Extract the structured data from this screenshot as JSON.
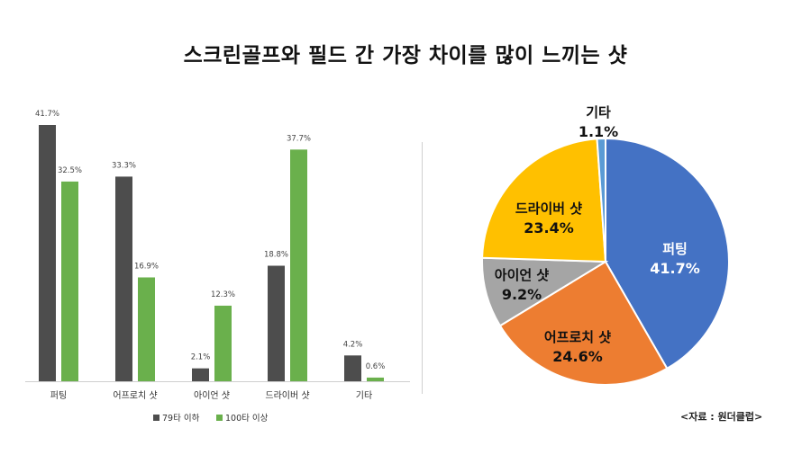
{
  "title": "스크린골프와 필드 간 가장 차이를 많이 느끼는 샷",
  "source": "<자료 : 원더클럽>",
  "colors": {
    "series_79": "#4d4d4d",
    "series_100": "#6ab04c",
    "pie_putting": "#4472c4",
    "pie_approach": "#ed7d31",
    "pie_iron": "#a5a5a5",
    "pie_driver": "#ffc000",
    "pie_etc": "#5b9bd5"
  },
  "chart_data": [
    {
      "type": "bar",
      "title": "",
      "categories": [
        "퍼팅",
        "어프로치 샷",
        "아이언 샷",
        "드라이버 샷",
        "기타"
      ],
      "series": [
        {
          "name": "79타 이하",
          "values": [
            41.7,
            33.3,
            2.1,
            18.8,
            4.2
          ],
          "labels": [
            "41.7%",
            "33.3%",
            "2.1%",
            "18.8%",
            "4.2%"
          ]
        },
        {
          "name": "100타 이상",
          "values": [
            32.5,
            16.9,
            12.3,
            37.7,
            0.6
          ],
          "labels": [
            "32.5%",
            "16.9%",
            "12.3%",
            "37.7%",
            "0.6%"
          ]
        }
      ],
      "ylim": [
        0,
        45
      ],
      "grid": false,
      "legend": "bottom"
    },
    {
      "type": "pie",
      "title": "",
      "slices": [
        {
          "label": "퍼팅",
          "value": 41.7,
          "value_label": "41.7%",
          "color_key": "pie_putting",
          "label_color": "#ffffff"
        },
        {
          "label": "어프로치 샷",
          "value": 24.6,
          "value_label": "24.6%",
          "color_key": "pie_approach",
          "label_color": "#111111"
        },
        {
          "label": "아이언 샷",
          "value": 9.2,
          "value_label": "9.2%",
          "color_key": "pie_iron",
          "label_color": "#111111"
        },
        {
          "label": "드라이버 샷",
          "value": 23.4,
          "value_label": "23.4%",
          "color_key": "pie_driver",
          "label_color": "#111111"
        },
        {
          "label": "기타",
          "value": 1.1,
          "value_label": "1.1%",
          "color_key": "pie_etc",
          "label_color": "#111111"
        }
      ],
      "legend": "none"
    }
  ]
}
